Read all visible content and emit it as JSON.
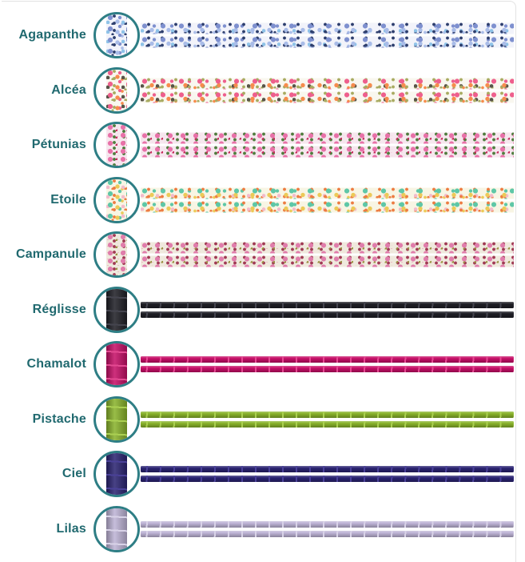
{
  "theme": {
    "label-color": "#20696f",
    "ring-color": "#2e7e85",
    "frame-border": "#e2e2e2"
  },
  "rows": [
    {
      "label": "Agapanthe",
      "type": "floral",
      "colors": {
        "bg": "#f2f3fa",
        "c1": "#7e90cf",
        "c2": "#a9bce8",
        "c3": "#2e3f6e",
        "c4": "#8fc3e8"
      }
    },
    {
      "label": "Alcéa",
      "type": "floral",
      "colors": {
        "bg": "#f9f7ef",
        "c1": "#ee5f8d",
        "c2": "#f68c4d",
        "c3": "#a8ab61",
        "c4": "#585448"
      }
    },
    {
      "label": "Pétunias",
      "type": "floral dense",
      "colors": {
        "bg": "#f6e7ee",
        "c1": "#e871a8",
        "c2": "#c62a5c",
        "c3": "#4f7d3e",
        "c4": "#f2aac7"
      }
    },
    {
      "label": "Etoile",
      "type": "floral",
      "colors": {
        "bg": "#f8f5e4",
        "c1": "#5ec7a7",
        "c2": "#ecca58",
        "c3": "#ed7c42",
        "c4": "#f3bbcb"
      }
    },
    {
      "label": "Campanule",
      "type": "floral dense",
      "colors": {
        "bg": "#efe9dd",
        "c1": "#e07dab",
        "c2": "#99913f",
        "c3": "#a03a54",
        "c4": "#e8498a"
      }
    },
    {
      "label": "Réglisse",
      "type": "cord",
      "colors": {
        "base": "#1e1e25",
        "hi": "#45454f"
      }
    },
    {
      "label": "Chamalot",
      "type": "cord",
      "colors": {
        "base": "#c60e67",
        "hi": "#e44a92"
      }
    },
    {
      "label": "Pistache",
      "type": "cord",
      "colors": {
        "base": "#88b22a",
        "hi": "#abd052"
      }
    },
    {
      "label": "Ciel",
      "type": "cord",
      "colors": {
        "base": "#2a2371",
        "hi": "#4a4198"
      }
    },
    {
      "label": "Lilas",
      "type": "cord",
      "colors": {
        "base": "#bdb3d5",
        "hi": "#d9d3e8"
      }
    }
  ]
}
